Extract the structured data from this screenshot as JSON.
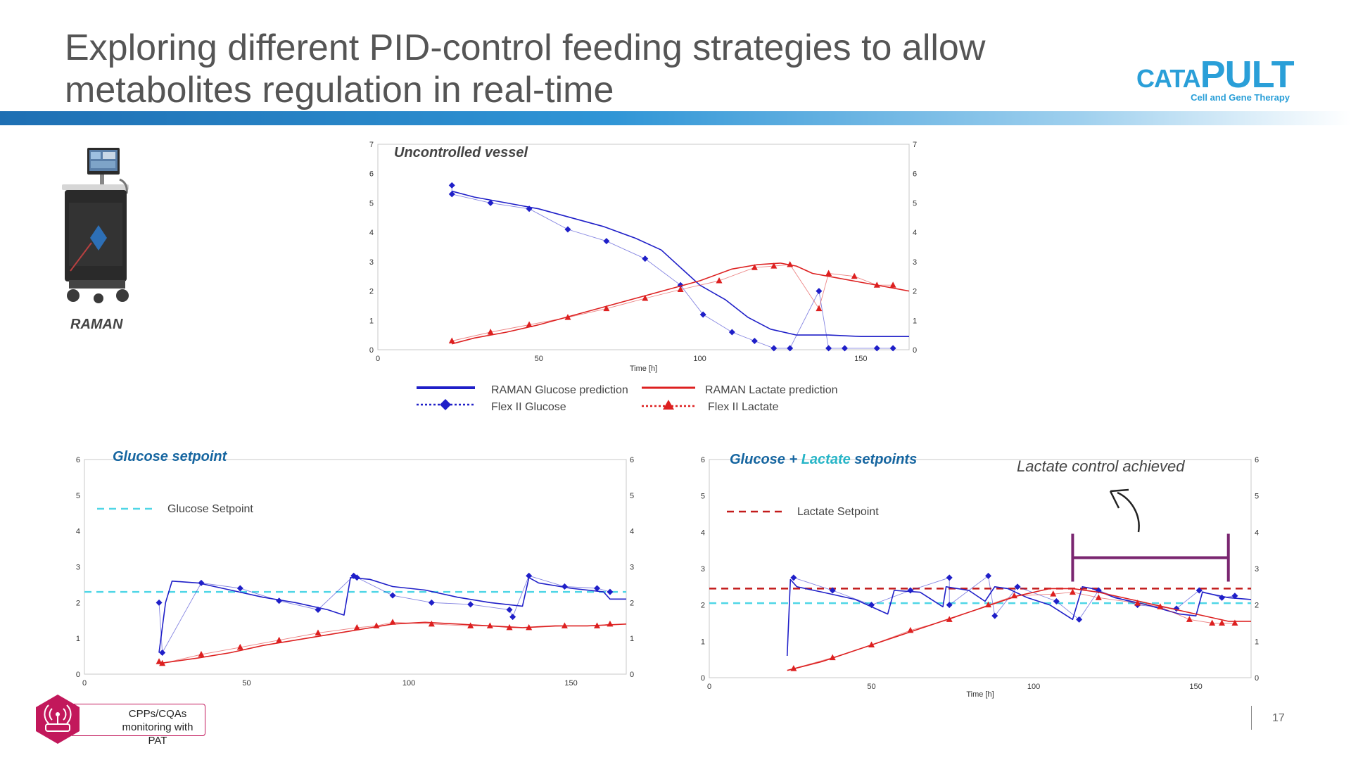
{
  "slide": {
    "title": "Exploring different PID-control feeding strategies to allow metabolites regulation in real-time",
    "page_number": "17",
    "colors": {
      "glucose": "#1f1fc8",
      "lactate": "#dd2020",
      "glucose_setpoint": "#4fd6e6",
      "lactate_setpoint": "#c31b1b",
      "bracket": "#7a2670",
      "band": "#2f95d6",
      "brand": "#2a9fd8"
    }
  },
  "logo": {
    "name_small_1": "CAT",
    "name_small_2": "A",
    "name_big": "PULT",
    "tagline": "Cell and Gene Therapy"
  },
  "raman": {
    "label": "RAMAN",
    "icon": "raman-analyzer-icon"
  },
  "legend": {
    "glucose_prediction": "RAMAN Glucose prediction",
    "glucose_offline": "Flex II Glucose",
    "lactate_prediction": "RAMAN Lactate prediction",
    "lactate_offline": "Flex II Lactate"
  },
  "annotation": {
    "text": "Lactate control achieved",
    "icon": "curved-arrow-icon"
  },
  "pat_badge": {
    "text": "CPPs/CQAs monitoring with PAT",
    "icon": "wireless-sensor-icon"
  },
  "chart_data": [
    {
      "id": "uncontrolled",
      "type": "line",
      "title": "Uncontrolled vessel",
      "xlabel": "Time [h]",
      "ylabel": "",
      "xlim": [
        0,
        165
      ],
      "ylim": [
        0,
        7
      ],
      "x_ticks": [
        0,
        50,
        100,
        150
      ],
      "y_ticks": [
        0,
        1,
        2,
        3,
        4,
        5,
        6,
        7
      ],
      "secondary_y_ticks": [
        0,
        1,
        2,
        3,
        4,
        5,
        6,
        7
      ],
      "grid": false,
      "series": [
        {
          "name": "RAMAN Glucose prediction",
          "kind": "line",
          "color": "#1f1fc8",
          "x": [
            23,
            30,
            40,
            50,
            60,
            70,
            80,
            88,
            95,
            100,
            108,
            115,
            122,
            130,
            140,
            150,
            160,
            165
          ],
          "y": [
            5.4,
            5.2,
            5.0,
            4.8,
            4.5,
            4.2,
            3.8,
            3.4,
            2.7,
            2.2,
            1.7,
            1.1,
            0.7,
            0.5,
            0.5,
            0.45,
            0.45,
            0.45
          ]
        },
        {
          "name": "Flex II Glucose",
          "kind": "marker-line",
          "color": "#1f1fc8",
          "x": [
            23,
            23,
            35,
            47,
            59,
            71,
            83,
            94,
            101,
            110,
            117,
            123,
            128,
            137,
            140,
            145,
            155,
            160
          ],
          "y": [
            5.6,
            5.3,
            5.0,
            4.8,
            4.1,
            3.7,
            3.1,
            2.2,
            1.2,
            0.6,
            0.3,
            0.05,
            0.05,
            2.0,
            0.05,
            0.05,
            0.05,
            0.05
          ]
        },
        {
          "name": "RAMAN Lactate prediction",
          "kind": "line",
          "color": "#dd2020",
          "x": [
            23,
            30,
            40,
            50,
            60,
            70,
            80,
            90,
            100,
            110,
            118,
            125,
            130,
            135,
            140,
            150,
            160,
            165
          ],
          "y": [
            0.2,
            0.4,
            0.6,
            0.85,
            1.15,
            1.45,
            1.75,
            2.05,
            2.35,
            2.75,
            2.9,
            2.95,
            2.85,
            2.6,
            2.5,
            2.3,
            2.1,
            2.0
          ]
        },
        {
          "name": "Flex II Lactate",
          "kind": "marker-line",
          "color": "#dd2020",
          "x": [
            23,
            35,
            47,
            59,
            71,
            83,
            94,
            106,
            117,
            123,
            128,
            137,
            140,
            148,
            155,
            160
          ],
          "y": [
            0.3,
            0.6,
            0.85,
            1.1,
            1.4,
            1.75,
            2.05,
            2.35,
            2.8,
            2.85,
            2.9,
            1.4,
            2.6,
            2.5,
            2.2,
            2.2
          ]
        }
      ]
    },
    {
      "id": "glucose-setpoint",
      "type": "line",
      "title": "Glucose setpoint",
      "xlabel": "",
      "ylabel": "",
      "xlim": [
        0,
        167
      ],
      "ylim": [
        0,
        6
      ],
      "x_ticks": [
        0,
        50,
        100,
        150
      ],
      "y_ticks": [
        0,
        1,
        2,
        3,
        4,
        5,
        6
      ],
      "secondary_y_ticks": [
        0,
        1,
        2,
        3,
        4,
        5,
        6
      ],
      "grid": false,
      "setpoint": {
        "name": "Glucose Setpoint",
        "value": 2.3,
        "color": "#4fd6e6"
      },
      "series": [
        {
          "name": "RAMAN Glucose prediction",
          "kind": "line",
          "color": "#1f1fc8",
          "x": [
            23,
            25,
            27,
            35,
            45,
            55,
            65,
            75,
            80,
            82,
            88,
            95,
            105,
            115,
            125,
            135,
            137,
            140,
            150,
            160,
            162,
            167
          ],
          "y": [
            0.6,
            2.0,
            2.6,
            2.55,
            2.35,
            2.15,
            2.0,
            1.8,
            1.65,
            2.7,
            2.65,
            2.45,
            2.35,
            2.15,
            2.0,
            1.9,
            2.7,
            2.55,
            2.4,
            2.3,
            2.1,
            2.1
          ]
        },
        {
          "name": "Flex II Glucose",
          "kind": "marker-line",
          "color": "#1f1fc8",
          "x": [
            23,
            24,
            36,
            48,
            60,
            72,
            83,
            84,
            95,
            107,
            119,
            131,
            132,
            137,
            148,
            158,
            162
          ],
          "y": [
            2.0,
            0.6,
            2.55,
            2.4,
            2.05,
            1.8,
            2.75,
            2.7,
            2.2,
            2.0,
            1.95,
            1.8,
            1.6,
            2.75,
            2.45,
            2.4,
            2.3
          ]
        },
        {
          "name": "RAMAN Lactate prediction",
          "kind": "line",
          "color": "#dd2020",
          "x": [
            23,
            35,
            45,
            55,
            65,
            75,
            85,
            95,
            105,
            115,
            125,
            135,
            145,
            155,
            167
          ],
          "y": [
            0.3,
            0.45,
            0.6,
            0.8,
            0.95,
            1.1,
            1.25,
            1.4,
            1.45,
            1.4,
            1.35,
            1.3,
            1.35,
            1.35,
            1.4
          ]
        },
        {
          "name": "Flex II Lactate",
          "kind": "marker-line",
          "color": "#dd2020",
          "x": [
            23,
            24,
            36,
            48,
            60,
            72,
            84,
            90,
            95,
            107,
            119,
            125,
            131,
            137,
            148,
            158,
            162
          ],
          "y": [
            0.35,
            0.3,
            0.55,
            0.75,
            0.95,
            1.15,
            1.3,
            1.35,
            1.45,
            1.4,
            1.35,
            1.35,
            1.3,
            1.3,
            1.35,
            1.35,
            1.4
          ]
        }
      ]
    },
    {
      "id": "glucose-lactate-setpoints",
      "type": "line",
      "title_parts": [
        {
          "text": "Glucose",
          "color": "#1565a0"
        },
        {
          "text": " + ",
          "color": "#1565a0"
        },
        {
          "text": "Lactate",
          "color": "#27b5c7"
        },
        {
          "text": " setpoints",
          "color": "#1565a0"
        }
      ],
      "xlabel": "Time [h]",
      "ylabel": "",
      "xlim": [
        0,
        167
      ],
      "ylim": [
        0,
        6
      ],
      "x_ticks": [
        0,
        50,
        100,
        150
      ],
      "y_ticks": [
        0,
        1,
        2,
        3,
        4,
        5,
        6
      ],
      "secondary_y_ticks": [
        0,
        1,
        2,
        3,
        4,
        5,
        6
      ],
      "grid": false,
      "setpoints": [
        {
          "name": "Lactate Setpoint",
          "value": 2.45,
          "color": "#c31b1b",
          "show_in_legend": true
        },
        {
          "name": "",
          "value": 2.05,
          "color": "#4fd6e6",
          "show_in_legend": false
        }
      ],
      "bracket": {
        "x_start": 112,
        "x_end": 160,
        "y": 3.3
      },
      "series": [
        {
          "name": "RAMAN Glucose prediction",
          "kind": "line",
          "color": "#1f1fc8",
          "x": [
            24,
            25,
            27,
            35,
            45,
            55,
            57,
            65,
            72,
            73,
            80,
            85,
            88,
            92,
            98,
            105,
            112,
            115,
            118,
            125,
            135,
            145,
            150,
            152,
            160,
            167
          ],
          "y": [
            0.6,
            2.7,
            2.5,
            2.35,
            2.15,
            1.75,
            2.4,
            2.35,
            1.95,
            2.5,
            2.4,
            2.1,
            2.5,
            2.45,
            2.2,
            2.0,
            1.6,
            2.5,
            2.45,
            2.2,
            2.0,
            1.75,
            1.7,
            2.35,
            2.2,
            2.15
          ]
        },
        {
          "name": "Flex II Glucose",
          "kind": "marker-line",
          "color": "#1f1fc8",
          "x": [
            26,
            38,
            50,
            62,
            74,
            74,
            86,
            88,
            95,
            107,
            114,
            120,
            132,
            144,
            151,
            158,
            162
          ],
          "y": [
            2.75,
            2.4,
            2.0,
            2.4,
            2.75,
            2.0,
            2.8,
            1.7,
            2.5,
            2.1,
            1.6,
            2.4,
            2.0,
            1.9,
            2.4,
            2.2,
            2.25
          ]
        },
        {
          "name": "RAMAN Lactate prediction",
          "kind": "line",
          "color": "#dd2020",
          "x": [
            24,
            35,
            45,
            55,
            65,
            75,
            85,
            95,
            105,
            112,
            120,
            130,
            140,
            150,
            160,
            167
          ],
          "y": [
            0.2,
            0.45,
            0.75,
            1.05,
            1.35,
            1.65,
            1.95,
            2.25,
            2.45,
            2.45,
            2.35,
            2.15,
            1.95,
            1.75,
            1.55,
            1.55
          ]
        },
        {
          "name": "Flex II Lactate",
          "kind": "marker-line",
          "color": "#dd2020",
          "x": [
            26,
            38,
            50,
            62,
            74,
            86,
            94,
            106,
            112,
            120,
            132,
            139,
            148,
            155,
            158,
            162
          ],
          "y": [
            0.25,
            0.55,
            0.9,
            1.3,
            1.6,
            2.0,
            2.25,
            2.3,
            2.35,
            2.2,
            2.05,
            1.95,
            1.6,
            1.5,
            1.5,
            1.5
          ]
        }
      ]
    }
  ]
}
